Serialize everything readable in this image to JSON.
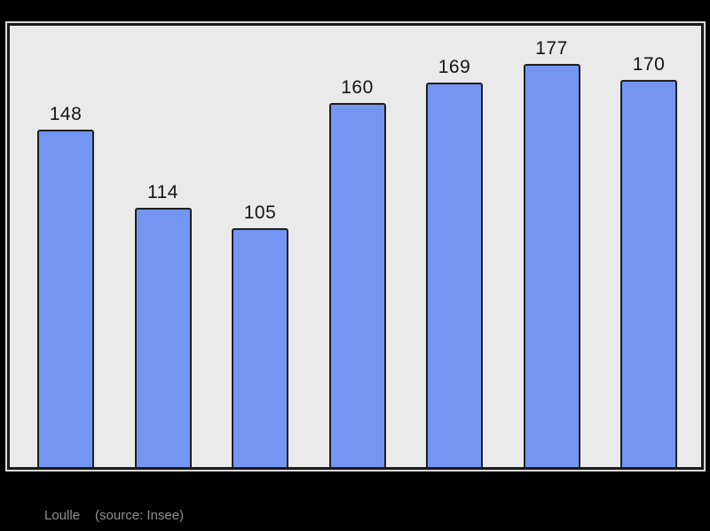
{
  "page": {
    "background": "#000000"
  },
  "chart_data": {
    "type": "bar",
    "values": [
      148,
      114,
      105,
      160,
      169,
      177,
      170
    ],
    "value_labels": [
      "148",
      "114",
      "105",
      "160",
      "169",
      "177",
      "170"
    ],
    "title": "",
    "xlabel": "",
    "ylabel": "",
    "ylim": [
      0,
      194
    ],
    "grid": false,
    "axes_shown": false,
    "legend": null,
    "colors": {
      "bar_fill": "#7296f2",
      "bar_border": "#1e1e1e",
      "plot_background": "#eaeaea",
      "frame_border": "#1a1a1a",
      "value_label": "#141414",
      "caption_text": "#8f8f8f",
      "page_background": "#000000"
    }
  },
  "caption": {
    "name": "Loulle",
    "source": "(source: Insee)"
  }
}
